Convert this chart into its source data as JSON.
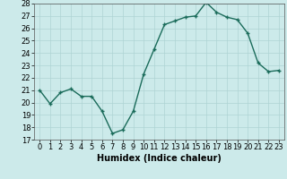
{
  "x": [
    0,
    1,
    2,
    3,
    4,
    5,
    6,
    7,
    8,
    9,
    10,
    11,
    12,
    13,
    14,
    15,
    16,
    17,
    18,
    19,
    20,
    21,
    22,
    23
  ],
  "y": [
    21.0,
    19.9,
    20.8,
    21.1,
    20.5,
    20.5,
    19.3,
    17.5,
    17.8,
    19.3,
    22.3,
    24.3,
    26.3,
    26.6,
    26.9,
    27.0,
    28.1,
    27.3,
    26.9,
    26.7,
    25.6,
    23.2,
    22.5,
    22.6
  ],
  "line_color": "#1a6b5a",
  "marker_color": "#1a6b5a",
  "bg_color": "#cceaea",
  "grid_color": "#aed4d4",
  "xlabel": "Humidex (Indice chaleur)",
  "ylim": [
    17,
    28
  ],
  "xlim": [
    -0.5,
    23.5
  ],
  "yticks": [
    17,
    18,
    19,
    20,
    21,
    22,
    23,
    24,
    25,
    26,
    27,
    28
  ],
  "xticks": [
    0,
    1,
    2,
    3,
    4,
    5,
    6,
    7,
    8,
    9,
    10,
    11,
    12,
    13,
    14,
    15,
    16,
    17,
    18,
    19,
    20,
    21,
    22,
    23
  ],
  "font_size": 6,
  "xlabel_fontsize": 7
}
